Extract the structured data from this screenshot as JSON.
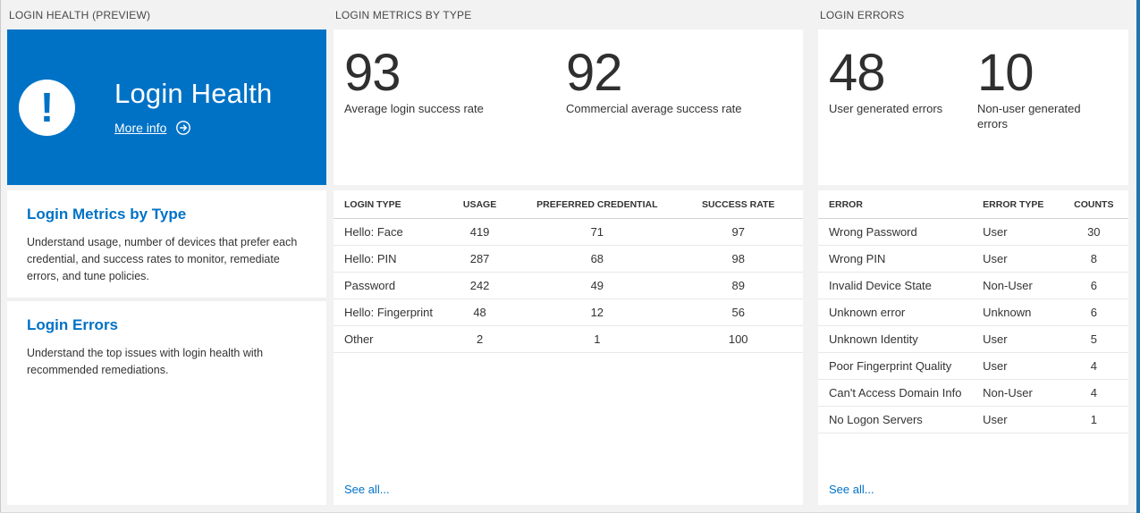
{
  "colors": {
    "background": "#f2f2f2",
    "tile_blue": "#0072c6",
    "accent_blue": "#0072c6",
    "text_dark": "#333333",
    "edge_strip_blue": "#2273ae"
  },
  "icons": {
    "alert": "!",
    "more_info_arrow": "circled-right-arrow"
  },
  "panels": {
    "health": {
      "section_title": "LOGIN HEALTH (PREVIEW)",
      "tile": {
        "title": "Login Health",
        "more_info_label": "More info"
      },
      "sections": [
        {
          "heading": "Login Metrics by Type",
          "description": "Understand usage, number of devices that prefer each credential, and success rates to monitor, remediate errors, and tune policies."
        },
        {
          "heading": "Login Errors",
          "description": "Understand the top issues with login health with recommended remediations."
        }
      ]
    },
    "metrics": {
      "section_title": "LOGIN METRICS BY TYPE",
      "stats": [
        {
          "value": "93",
          "label": "Average login success rate"
        },
        {
          "value": "92",
          "label": "Commercial average success rate"
        }
      ],
      "table": {
        "columns": [
          "LOGIN TYPE",
          "USAGE",
          "PREFERRED CREDENTIAL",
          "SUCCESS RATE"
        ],
        "rows": [
          [
            "Hello: Face",
            "419",
            "71",
            "97"
          ],
          [
            "Hello: PIN",
            "287",
            "68",
            "98"
          ],
          [
            "Password",
            "242",
            "49",
            "89"
          ],
          [
            "Hello: Fingerprint",
            "48",
            "12",
            "56"
          ],
          [
            "Other",
            "2",
            "1",
            "100"
          ]
        ]
      },
      "see_all_label": "See all..."
    },
    "errors": {
      "section_title": "LOGIN ERRORS",
      "stats": [
        {
          "value": "48",
          "label": "User generated errors"
        },
        {
          "value": "10",
          "label": "Non-user generated errors"
        }
      ],
      "table": {
        "columns": [
          "ERROR",
          "ERROR TYPE",
          "COUNTS"
        ],
        "rows": [
          [
            "Wrong Password",
            "User",
            "30"
          ],
          [
            "Wrong PIN",
            "User",
            "8"
          ],
          [
            "Invalid Device State",
            "Non-User",
            "6"
          ],
          [
            "Unknown error",
            "Unknown",
            "6"
          ],
          [
            "Unknown Identity",
            "User",
            "5"
          ],
          [
            "Poor Fingerprint Quality",
            "User",
            "4"
          ],
          [
            "Can't Access Domain Info",
            "Non-User",
            "4"
          ],
          [
            "No Logon Servers",
            "User",
            "1"
          ]
        ]
      },
      "see_all_label": "See all..."
    }
  }
}
